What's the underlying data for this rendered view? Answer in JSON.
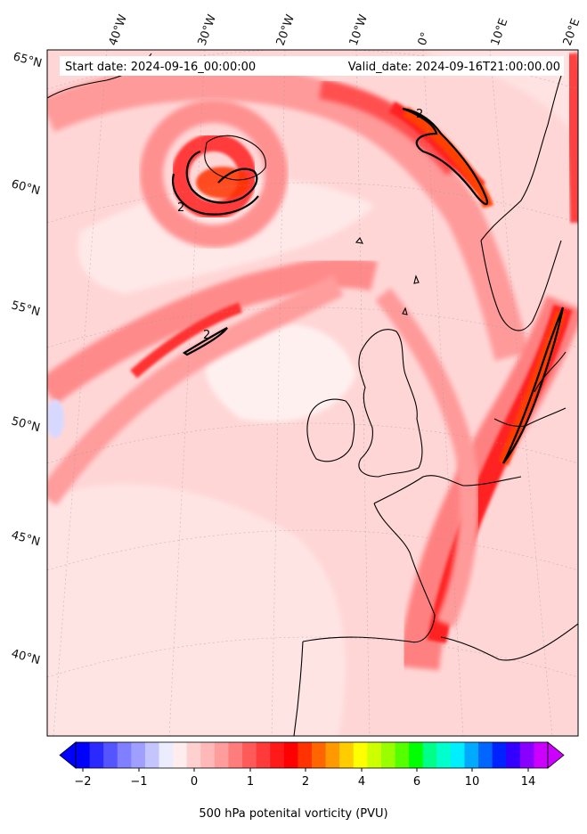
{
  "header": {
    "start_date": "Start date: 2024-09-16_00:00:00",
    "valid_date": "Valid_date: 2024-09-16T21:00:00.00"
  },
  "longitude_labels": [
    "40°W",
    "30°W",
    "20°W",
    "10°W",
    "0°",
    "10°E",
    "20°E"
  ],
  "latitude_labels": [
    "65°N",
    "60°N",
    "55°N",
    "50°N",
    "45°N",
    "40°N"
  ],
  "contour_label": "2",
  "colorbar": {
    "title": "500 hPa potenital vorticity (PVU)",
    "ticks": [
      "−2",
      "−1",
      "0",
      "1",
      "2",
      "4",
      "6",
      "10",
      "14"
    ],
    "colors": [
      "#0000ff",
      "#2a2aff",
      "#5555ff",
      "#7f7fff",
      "#9f9fff",
      "#c4c4ff",
      "#ececff",
      "#ffecec",
      "#ffd0d0",
      "#ffb8b8",
      "#ff9c9c",
      "#ff7c7c",
      "#ff5a5a",
      "#ff3a3a",
      "#ff1a1a",
      "#ff0000",
      "#ff3300",
      "#ff6600",
      "#ff9900",
      "#ffcc00",
      "#ffff00",
      "#ccff00",
      "#99ff00",
      "#55ff00",
      "#00ff00",
      "#00ff88",
      "#00ffcc",
      "#00eeff",
      "#00aaff",
      "#0066ff",
      "#0022ff",
      "#3300ff",
      "#8800ff",
      "#cc00ff"
    ]
  },
  "colors": {
    "pv_low": "#ffe6e6",
    "pv_mid": "#ff8080",
    "pv_high": "#ff1010",
    "pv_core": "#ff4a00",
    "coast": "#000000"
  }
}
